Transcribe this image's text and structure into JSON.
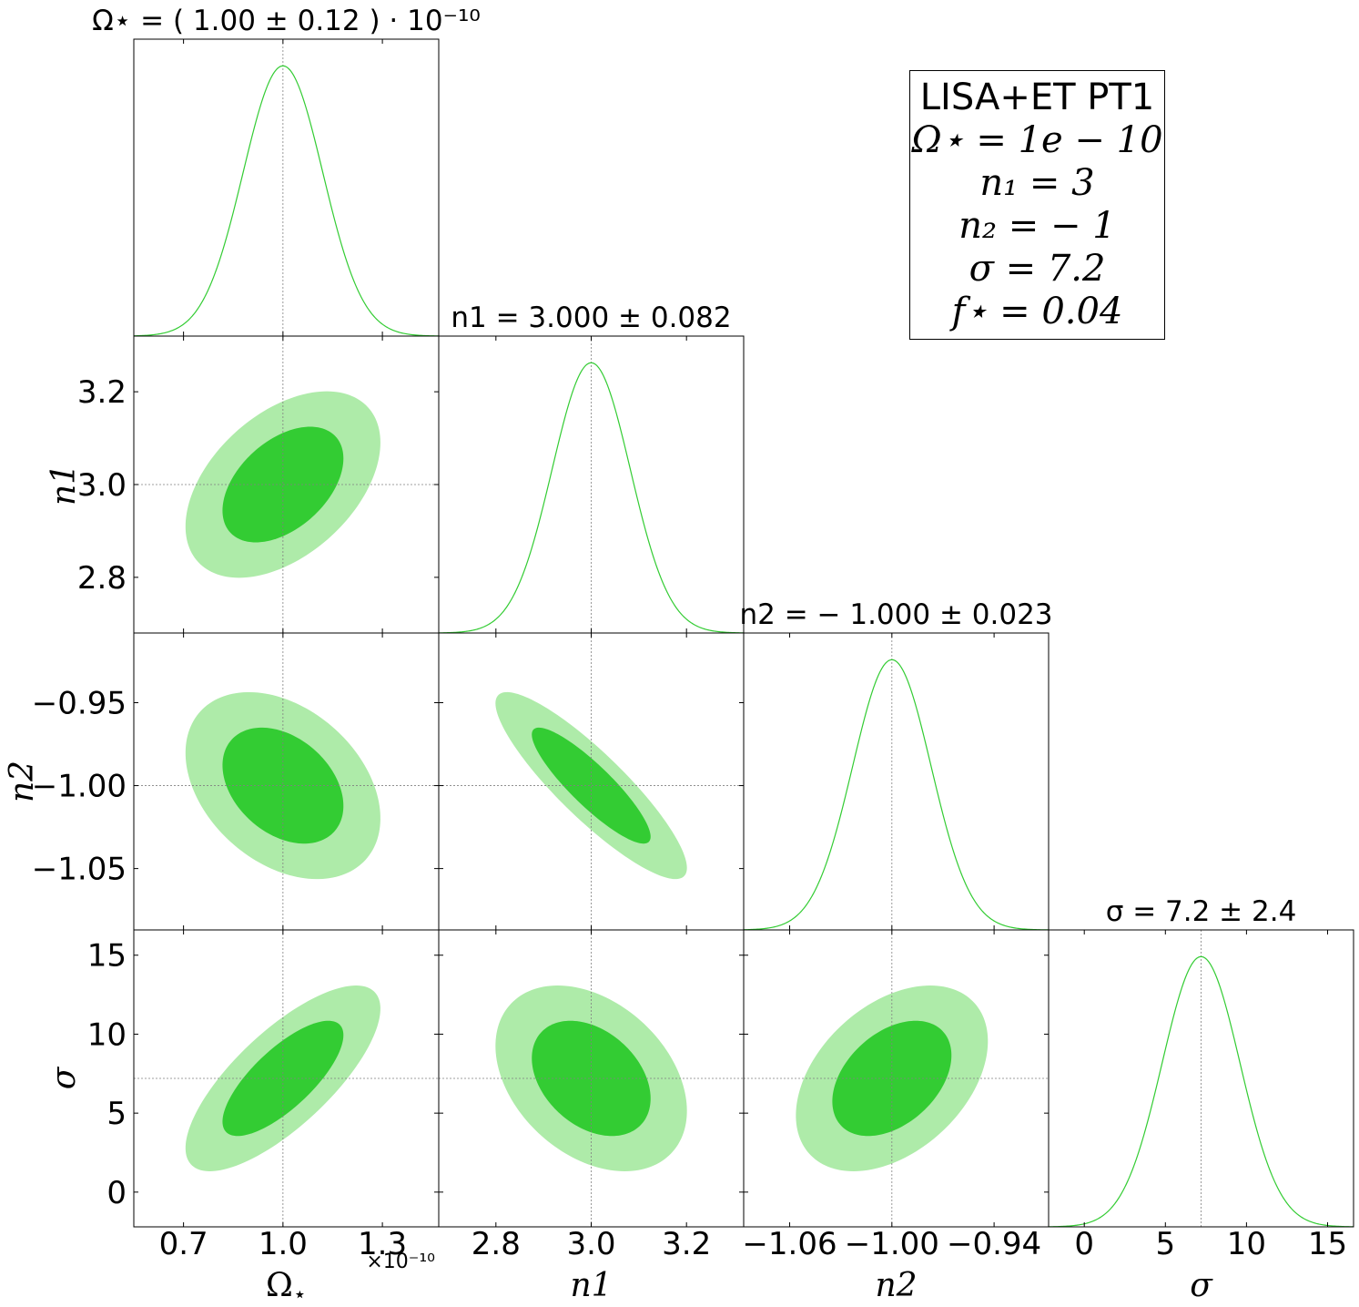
{
  "chart_data": {
    "type": "corner",
    "parameters": [
      {
        "name": "Ω⋆",
        "symbol": "Ω",
        "subscript": "⋆",
        "italic": false,
        "truth": 1.0,
        "mean": 1.0,
        "sd": 0.12,
        "range": [
          0.55,
          1.47
        ],
        "ticks": [
          0.7,
          1.0,
          1.3
        ],
        "tick_labels": [
          "0.7",
          "1.0",
          "1.3"
        ],
        "multiplier": "×10⁻¹⁰"
      },
      {
        "name": "n1",
        "symbol": "n1",
        "italic": true,
        "truth": 3.0,
        "mean": 3.0,
        "sd": 0.082,
        "range": [
          2.68,
          3.32
        ],
        "ticks": [
          2.8,
          3.0,
          3.2
        ],
        "tick_labels": [
          "2.8",
          "3.0",
          "3.2"
        ]
      },
      {
        "name": "n2",
        "symbol": "n2",
        "italic": true,
        "truth": -1.0,
        "mean": -1.0,
        "sd": 0.023,
        "range": [
          -1.087,
          -0.908
        ],
        "ticks": [
          -1.06,
          -1.0,
          -0.94
        ],
        "tick_labels": [
          "−1.06",
          "−1.00",
          "−0.94"
        ],
        "y_ticks": [
          -0.95,
          -1.0,
          -1.05
        ],
        "y_tick_labels": [
          "−0.95",
          "−1.00",
          "−1.05"
        ]
      },
      {
        "name": "σ",
        "symbol": "σ",
        "italic": true,
        "truth": 7.2,
        "mean": 7.2,
        "sd": 2.4,
        "range": [
          -2.2,
          16.6
        ],
        "ticks": [
          0,
          5,
          10,
          15
        ],
        "tick_labels": [
          "0",
          "5",
          "10",
          "15"
        ]
      }
    ],
    "correlations": {
      "1_0": 0.45,
      "2_0": -0.35,
      "2_1": -0.88,
      "3_0": 0.75,
      "3_1": -0.35,
      "3_2": 0.4
    },
    "titles": [
      "Ω⋆ = ( 1.00 ± 0.12 ) · 10⁻¹⁰",
      "n1 = 3.000 ± 0.082",
      "n2 = − 1.000 ± 0.023",
      "σ = 7.2 ± 2.4"
    ],
    "contour_levels": [
      "68%",
      "95%"
    ],
    "colors": {
      "line": "#33cc33",
      "inner": "#33cc33",
      "outer": "#aeeba9",
      "truth": "#808080"
    },
    "legend_placement": "top-right",
    "legend_lines": [
      "LISA+ET PT1",
      "Ω⋆ = 1e − 10",
      "n₁ = 3",
      "n₂ = − 1",
      "σ = 7.2",
      "f⋆ = 0.04"
    ]
  },
  "legend": {
    "l1": "LISA+ET PT1",
    "l2": "Ω⋆ = 1e − 10",
    "l3": "n₁ = 3",
    "l4": "n₂ = − 1",
    "l5": "σ = 7.2",
    "l6": "f⋆ = 0.04"
  }
}
